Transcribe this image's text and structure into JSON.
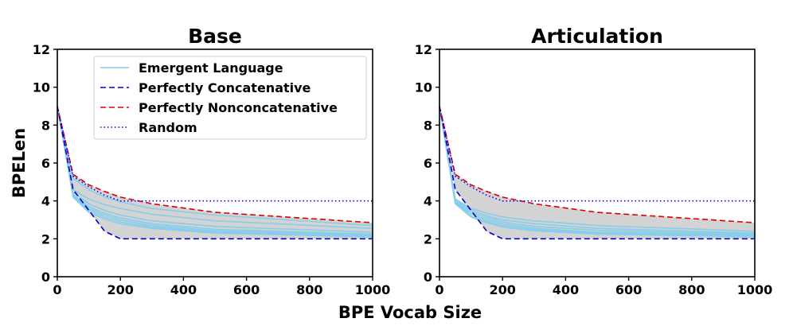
{
  "figure": {
    "xlabel": "BPE Vocab Size",
    "ylabel": "BPELen"
  },
  "legend": {
    "placement": "upper-right",
    "entries": [
      {
        "label": "Emergent Language",
        "color": "#87CEEB",
        "style": "solid"
      },
      {
        "label": "Perfectly Concatenative",
        "color": "#0000CC",
        "style": "dashed"
      },
      {
        "label": "Perfectly Nonconcatenative",
        "color": "#DD0000",
        "style": "dashed"
      },
      {
        "label": "Random",
        "color": "#0000FF",
        "style": "dotted"
      }
    ]
  },
  "colors": {
    "emergent": "#87CEEB",
    "band": "#D3D3D3",
    "concatenative": "#0000CC",
    "nonconcatenative": "#DD0000",
    "random": "#0000FF"
  },
  "chart_data": [
    {
      "type": "line",
      "title": "Base",
      "xlabel": "BPE Vocab Size",
      "ylabel": "BPELen",
      "xlim": [
        0,
        1000
      ],
      "ylim": [
        0,
        12
      ],
      "xticks": [
        0,
        200,
        400,
        600,
        800,
        1000
      ],
      "yticks": [
        0,
        2,
        4,
        6,
        8,
        10,
        12
      ],
      "x": [
        0,
        50,
        100,
        150,
        200,
        300,
        500,
        1000
      ],
      "series": [
        {
          "name": "Perfectly Concatenative",
          "kind": "concatenative",
          "values": [
            9.0,
            4.6,
            3.5,
            2.4,
            2.0,
            2.0,
            2.0,
            2.0
          ]
        },
        {
          "name": "Perfectly Nonconcatenative",
          "kind": "nonconcatenative",
          "values": [
            9.0,
            5.4,
            4.85,
            4.5,
            4.2,
            3.85,
            3.4,
            2.85
          ]
        },
        {
          "name": "Random",
          "kind": "random",
          "values": [
            9.0,
            5.3,
            4.75,
            4.3,
            4.0,
            4.0,
            4.0,
            4.0
          ]
        },
        {
          "name": "Emergent Language",
          "kind": "emergent",
          "values": [
            9.0,
            5.2,
            4.6,
            4.2,
            3.95,
            3.6,
            3.25,
            2.7
          ]
        },
        {
          "kind": "emergent",
          "values": [
            9.0,
            4.6,
            4.1,
            3.8,
            3.6,
            3.3,
            2.95,
            2.55
          ]
        },
        {
          "kind": "emergent",
          "values": [
            9.0,
            4.45,
            3.85,
            3.5,
            3.25,
            2.95,
            2.65,
            2.35
          ]
        },
        {
          "kind": "emergent",
          "values": [
            9.0,
            4.35,
            3.7,
            3.35,
            3.1,
            2.8,
            2.5,
            2.25
          ]
        },
        {
          "kind": "emergent",
          "values": [
            9.0,
            4.3,
            3.6,
            3.25,
            3.0,
            2.7,
            2.42,
            2.2
          ]
        },
        {
          "kind": "emergent",
          "values": [
            9.0,
            4.25,
            3.5,
            3.15,
            2.9,
            2.62,
            2.35,
            2.15
          ]
        },
        {
          "kind": "emergent",
          "values": [
            9.0,
            4.2,
            3.4,
            3.05,
            2.8,
            2.55,
            2.3,
            2.1
          ]
        }
      ]
    },
    {
      "type": "line",
      "title": "Articulation",
      "xlabel": "BPE Vocab Size",
      "ylabel": "",
      "xlim": [
        0,
        1000
      ],
      "ylim": [
        0,
        12
      ],
      "xticks": [
        0,
        200,
        400,
        600,
        800,
        1000
      ],
      "yticks": [
        0,
        2,
        4,
        6,
        8,
        10,
        12
      ],
      "x": [
        0,
        50,
        100,
        150,
        200,
        300,
        500,
        1000
      ],
      "series": [
        {
          "name": "Perfectly Concatenative",
          "kind": "concatenative",
          "values": [
            9.0,
            4.6,
            3.5,
            2.4,
            2.0,
            2.0,
            2.0,
            2.0
          ]
        },
        {
          "name": "Perfectly Nonconcatenative",
          "kind": "nonconcatenative",
          "values": [
            9.0,
            5.4,
            4.85,
            4.5,
            4.2,
            3.85,
            3.4,
            2.85
          ]
        },
        {
          "name": "Random",
          "kind": "random",
          "values": [
            9.0,
            5.3,
            4.75,
            4.3,
            4.0,
            4.0,
            4.0,
            4.0
          ]
        },
        {
          "name": "Emergent Language",
          "kind": "emergent",
          "values": [
            9.0,
            4.1,
            3.6,
            3.35,
            3.15,
            2.95,
            2.7,
            2.4
          ]
        },
        {
          "kind": "emergent",
          "values": [
            9.0,
            4.05,
            3.5,
            3.2,
            3.0,
            2.8,
            2.55,
            2.3
          ]
        },
        {
          "kind": "emergent",
          "values": [
            9.0,
            4.0,
            3.4,
            3.1,
            2.9,
            2.65,
            2.45,
            2.25
          ]
        },
        {
          "kind": "emergent",
          "values": [
            9.0,
            3.95,
            3.3,
            3.0,
            2.8,
            2.55,
            2.35,
            2.2
          ]
        },
        {
          "kind": "emergent",
          "values": [
            9.0,
            3.9,
            3.2,
            2.9,
            2.7,
            2.48,
            2.3,
            2.15
          ]
        },
        {
          "kind": "emergent",
          "values": [
            9.0,
            3.85,
            3.15,
            2.85,
            2.62,
            2.42,
            2.25,
            2.1
          ]
        }
      ]
    }
  ]
}
